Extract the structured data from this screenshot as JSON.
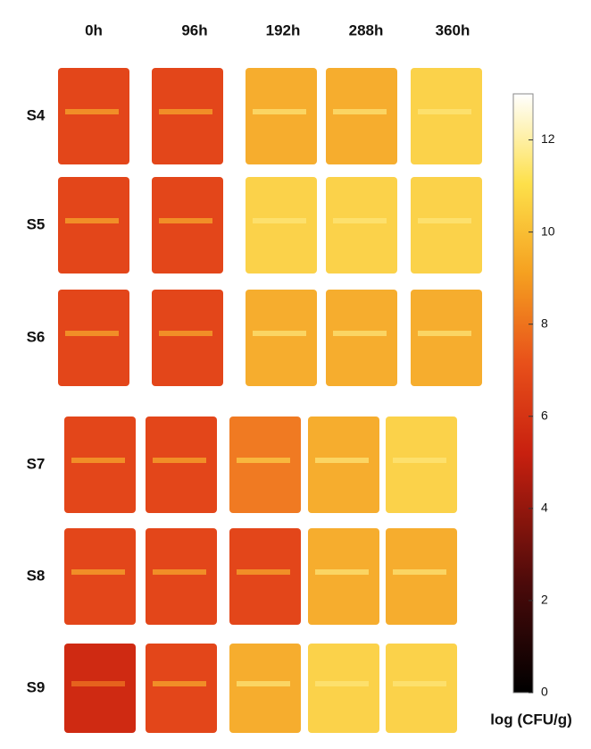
{
  "columns": [
    "0h",
    "96h",
    "192h",
    "288h",
    "360h"
  ],
  "rows": [
    "S4",
    "S5",
    "S6",
    "S7",
    "S8",
    "S9"
  ],
  "colorbar": {
    "label": "log (CFU/g)",
    "lim": [
      0,
      13
    ],
    "ticks": [
      0,
      2,
      4,
      6,
      8,
      10,
      12
    ]
  }
}
